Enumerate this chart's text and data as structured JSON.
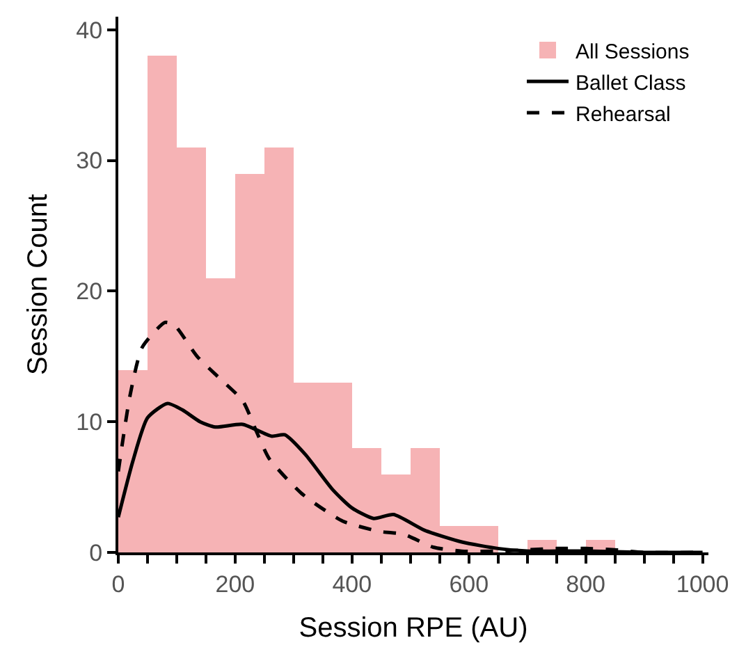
{
  "chart_data": {
    "type": "histogram",
    "xlabel": "Session RPE (AU)",
    "ylabel": "Session Count",
    "bins": [
      0,
      50,
      100,
      150,
      200,
      250,
      300,
      350,
      400,
      450,
      500,
      550,
      600,
      650,
      700,
      750,
      800,
      850
    ],
    "series": [
      {
        "name": "All Sessions",
        "color": "#f6b3b5",
        "values": [
          14,
          38,
          31,
          21,
          29,
          31,
          13,
          13,
          8,
          6,
          8,
          2,
          2,
          0,
          1,
          0,
          1
        ]
      },
      {
        "name": "Ballet Class",
        "type": "line",
        "color": "#000000",
        "line_style": "solid",
        "x": [
          0,
          25,
          50,
          84,
          110,
          140,
          166,
          213,
          262,
          285,
          320,
          367,
          400,
          437,
          471,
          524,
          588,
          650,
          700,
          750,
          800,
          900,
          1000
        ],
        "values": [
          2.7,
          7,
          10.3,
          11.4,
          10.9,
          10.0,
          9.6,
          9.8,
          8.9,
          9.0,
          7.5,
          4.8,
          3.4,
          2.6,
          2.9,
          1.7,
          0.8,
          0.3,
          0.1,
          0.1,
          0.1,
          0,
          0
        ]
      },
      {
        "name": "Rehearsal",
        "type": "line",
        "color": "#000000",
        "line_style": "dashed",
        "x": [
          0,
          20,
          41,
          80,
          96,
          135,
          174,
          213,
          237,
          258,
          314,
          384,
          448,
          488,
          539,
          588,
          650,
          700,
          750,
          800,
          850,
          900,
          1000
        ],
        "values": [
          6.2,
          12,
          15.7,
          17.6,
          17.4,
          15.0,
          13.3,
          11.6,
          9.2,
          7.2,
          4.5,
          2.4,
          1.6,
          1.4,
          0.4,
          0.1,
          0.1,
          0.2,
          0.3,
          0.3,
          0.2,
          0,
          0
        ]
      }
    ],
    "xlim": [
      0,
      1010
    ],
    "ylim": [
      0,
      41
    ],
    "xticks": [
      0,
      {
        "value": 50,
        "label": null
      },
      200,
      {
        "value": 100,
        "label": null
      },
      {
        "value": 150,
        "label": null
      },
      {
        "value": 250,
        "label": null
      },
      {
        "value": 300,
        "label": null
      },
      {
        "value": 350,
        "label": null
      },
      400,
      {
        "value": 450,
        "label": null
      },
      {
        "value": 500,
        "label": null
      },
      {
        "value": 550,
        "label": null
      },
      600,
      {
        "value": 650,
        "label": null
      },
      {
        "value": 700,
        "label": null
      },
      {
        "value": 750,
        "label": null
      },
      800,
      {
        "value": 850,
        "label": null
      },
      {
        "value": 900,
        "label": null
      },
      {
        "value": 950,
        "label": null
      },
      1000
    ],
    "yticks": [
      0,
      10,
      20,
      30,
      40
    ],
    "legend": "top right"
  }
}
